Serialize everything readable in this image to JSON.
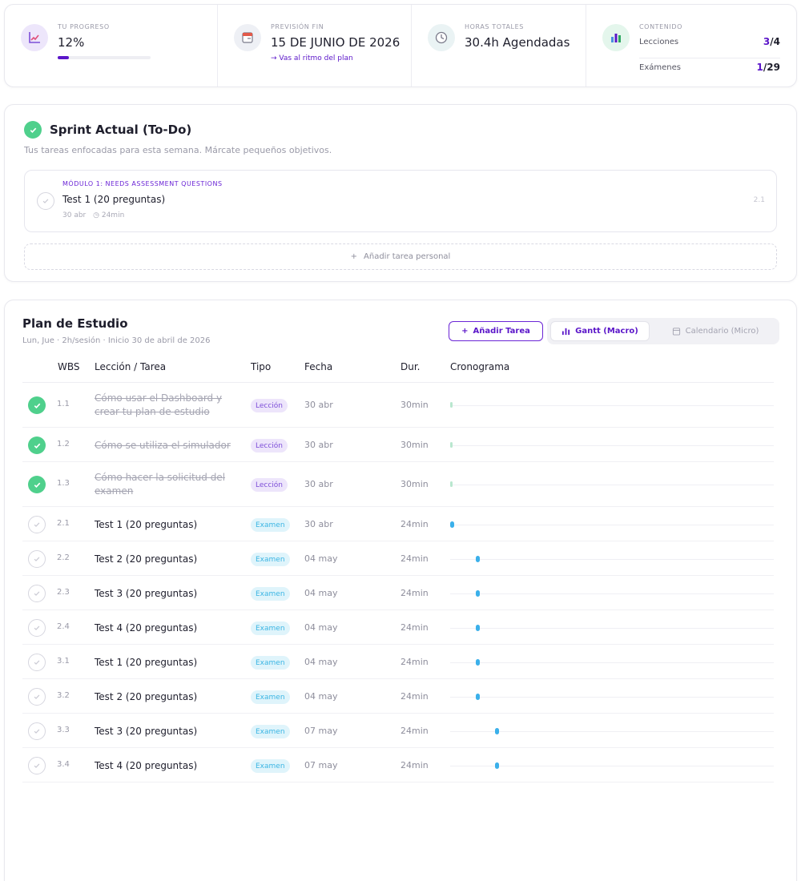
{
  "colors": {
    "accent": "#5b16c9",
    "done": "#4fd08c",
    "lesson_bar": "#b9e7cf",
    "exam_bar": "#3bb0ea"
  },
  "stats": {
    "progress": {
      "icon": "chart-line-icon",
      "label": "TU PROGRESO",
      "value": "12%",
      "fraction": 0.12
    },
    "forecast": {
      "icon": "calendar-icon",
      "label": "PREVISIÓN FIN",
      "value": "15 DE JUNIO DE 2026",
      "note": "→ Vas al ritmo del plan"
    },
    "hours": {
      "icon": "clock-icon",
      "label": "HORAS TOTALES",
      "value": "30.4h Agendadas"
    },
    "content": {
      "icon": "bar-chart-icon",
      "label": "CONTENIDO",
      "lessons_label": "Lecciones",
      "lessons_done": "3",
      "lessons_total": "/4",
      "exams_label": "Exámenes",
      "exams_done": "1",
      "exams_total": "/29"
    }
  },
  "sprint": {
    "title": "Sprint Actual (To-Do)",
    "subtitle": "Tus tareas enfocadas para esta semana. Márcate pequeños objetivos.",
    "task": {
      "module": "MÓDULO 1: NEEDS ASSESSMENT QUESTIONS",
      "title": "Test 1 (20 preguntas)",
      "date": "30 abr",
      "duration": "24min",
      "wbs": "2.1"
    },
    "add_label": "Añadir tarea personal"
  },
  "plan": {
    "title": "Plan de Estudio",
    "subtitle": "Lun, Jue · 2h/sesión · Inicio 30 de abril de 2026",
    "add_button": "Añadir Tarea",
    "view_gantt": "Gantt (Macro)",
    "view_calendar": "Calendario (Micro)",
    "headers": {
      "wbs": "WBS",
      "title": "Lección / Tarea",
      "type": "Tipo",
      "date": "Fecha",
      "duration": "Dur.",
      "timeline": "Cronograma"
    },
    "rows": [
      {
        "wbs": "1.1",
        "title": "Cómo usar el Dashboard y crear tu plan de estudio",
        "type": "Lección",
        "date": "30 abr",
        "duration": "30min",
        "done": true,
        "day_offset": 0
      },
      {
        "wbs": "1.2",
        "title": "Cómo se utiliza el simulador",
        "type": "Lección",
        "date": "30 abr",
        "duration": "30min",
        "done": true,
        "day_offset": 0
      },
      {
        "wbs": "1.3",
        "title": "Cómo hacer la solicitud del examen",
        "type": "Lección",
        "date": "30 abr",
        "duration": "30min",
        "done": true,
        "day_offset": 0
      },
      {
        "wbs": "2.1",
        "title": "Test 1 (20 preguntas)",
        "type": "Examen",
        "date": "30 abr",
        "duration": "24min",
        "done": false,
        "day_offset": 0
      },
      {
        "wbs": "2.2",
        "title": "Test 2 (20 preguntas)",
        "type": "Examen",
        "date": "04 may",
        "duration": "24min",
        "done": false,
        "day_offset": 4
      },
      {
        "wbs": "2.3",
        "title": "Test 3 (20 preguntas)",
        "type": "Examen",
        "date": "04 may",
        "duration": "24min",
        "done": false,
        "day_offset": 4
      },
      {
        "wbs": "2.4",
        "title": "Test 4 (20 preguntas)",
        "type": "Examen",
        "date": "04 may",
        "duration": "24min",
        "done": false,
        "day_offset": 4
      },
      {
        "wbs": "3.1",
        "title": "Test 1 (20 preguntas)",
        "type": "Examen",
        "date": "04 may",
        "duration": "24min",
        "done": false,
        "day_offset": 4
      },
      {
        "wbs": "3.2",
        "title": "Test 2 (20 preguntas)",
        "type": "Examen",
        "date": "04 may",
        "duration": "24min",
        "done": false,
        "day_offset": 4
      },
      {
        "wbs": "3.3",
        "title": "Test 3 (20 preguntas)",
        "type": "Examen",
        "date": "07 may",
        "duration": "24min",
        "done": false,
        "day_offset": 7
      },
      {
        "wbs": "3.4",
        "title": "Test 4 (20 preguntas)",
        "type": "Examen",
        "date": "07 may",
        "duration": "24min",
        "done": false,
        "day_offset": 7
      }
    ]
  }
}
